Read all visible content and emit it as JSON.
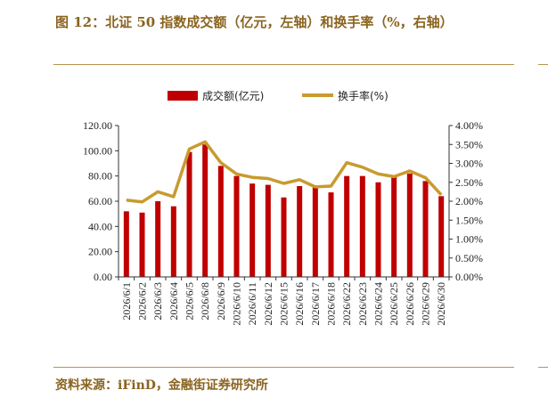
{
  "title": "图 12：北证 50 指数成交额（亿元，左轴）和换手率（%，右轴）",
  "source": "资料来源：iFinD，金融街证券研究所",
  "chart_data": {
    "type": "bar",
    "categories": [
      "2026/6/1",
      "2026/6/2",
      "2026/6/3",
      "2026/6/4",
      "2026/6/5",
      "2026/6/8",
      "2026/6/9",
      "2026/6/10",
      "2026/6/11",
      "2026/6/12",
      "2026/6/15",
      "2026/6/16",
      "2026/6/17",
      "2026/6/18",
      "2026/6/22",
      "2026/6/23",
      "2026/6/24",
      "2026/6/25",
      "2026/6/26",
      "2026/6/29",
      "2026/6/30"
    ],
    "series": [
      {
        "name": "成交额(亿元)",
        "type": "bar",
        "axis": "left",
        "color": "#c00000",
        "values": [
          52,
          51,
          60,
          56,
          99,
          105,
          88,
          80,
          74,
          73,
          63,
          72,
          71,
          67,
          80,
          80,
          75,
          80,
          82,
          76,
          64
        ]
      },
      {
        "name": "换手率(%)",
        "type": "line",
        "axis": "right",
        "color": "#c89b2e",
        "values": [
          2.03,
          1.98,
          2.25,
          2.12,
          3.38,
          3.57,
          3.02,
          2.72,
          2.63,
          2.6,
          2.47,
          2.57,
          2.38,
          2.4,
          3.02,
          2.9,
          2.72,
          2.65,
          2.8,
          2.62,
          2.17
        ]
      }
    ],
    "left_axis": {
      "ylim": [
        0,
        120
      ],
      "ticks": [
        "0.00",
        "20.00",
        "40.00",
        "60.00",
        "80.00",
        "100.00",
        "120.00"
      ]
    },
    "right_axis": {
      "ylim": [
        0,
        4
      ],
      "ticks": [
        "0.00%",
        "0.50%",
        "1.00%",
        "1.50%",
        "2.00%",
        "2.50%",
        "3.00%",
        "3.50%",
        "4.00%"
      ]
    },
    "legend_position": "top-center",
    "grid": false
  }
}
